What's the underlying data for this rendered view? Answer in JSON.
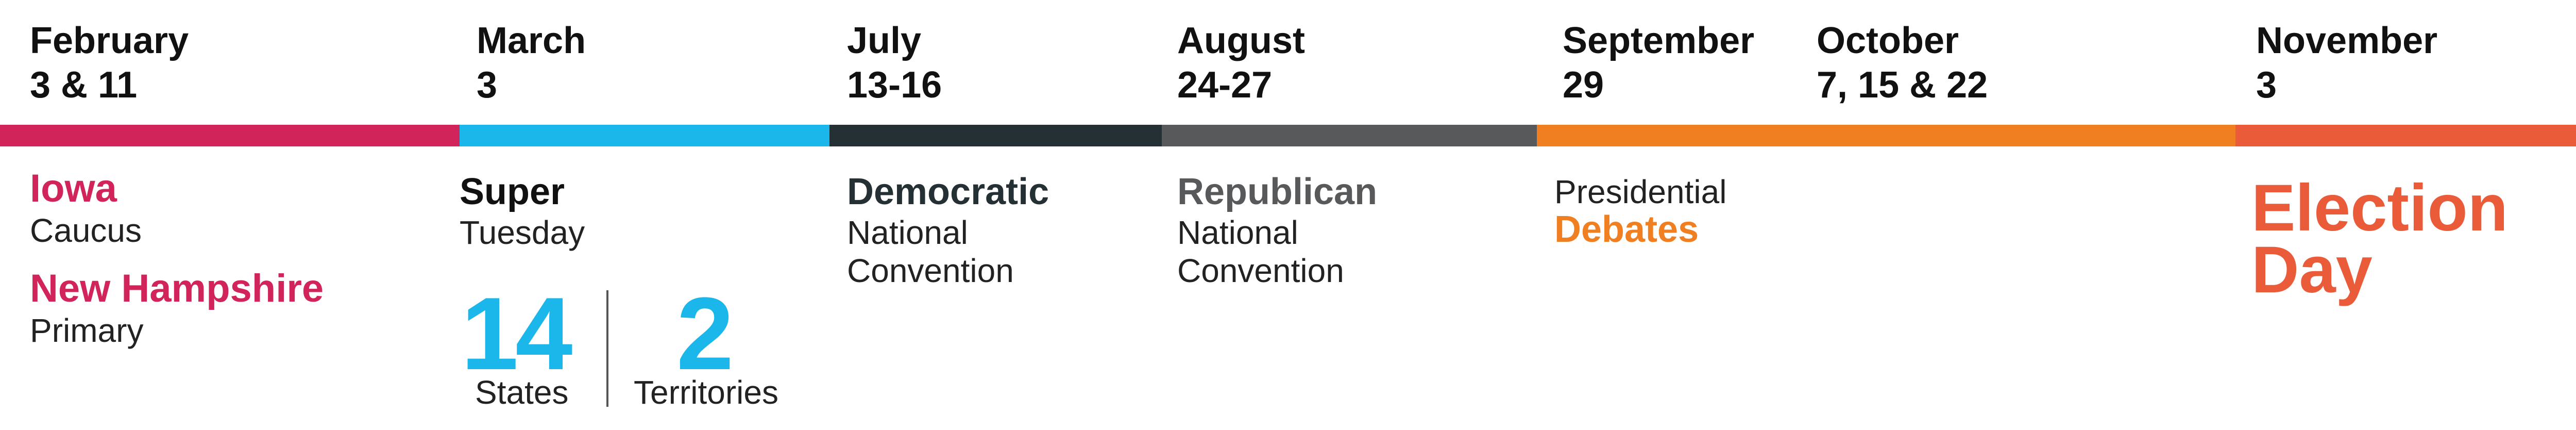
{
  "timeline": {
    "dates": [
      {
        "month": "February",
        "days": "3 & 11"
      },
      {
        "month": "March",
        "days": "3"
      },
      {
        "month": "July",
        "days": "13-16"
      },
      {
        "month": "August",
        "days": "24-27"
      },
      {
        "month": "September",
        "days": "29"
      },
      {
        "month": "October",
        "days": "7, 15 & 22"
      },
      {
        "month": "November",
        "days": "3"
      }
    ],
    "bar_colors": [
      "#d0245a",
      "#1bb7ea",
      "#243033",
      "#58595b",
      "#f07f22",
      "#f07f22",
      "#ea5b3a"
    ]
  },
  "events": {
    "iowa": {
      "title": "Iowa",
      "subtitle": "Caucus",
      "color": "#d0245a"
    },
    "new_hampshire": {
      "title": "New Hampshire",
      "subtitle": "Primary",
      "color": "#d0245a"
    },
    "super_tuesday": {
      "title": "Super",
      "subtitle": "Tuesday",
      "states_count": "14",
      "states_label": "States",
      "territories_count": "2",
      "territories_label": "Territories",
      "color": "#1bb7ea"
    },
    "dnc": {
      "title": "Democratic",
      "line2": "National",
      "line3": "Convention",
      "color": "#243033"
    },
    "rnc": {
      "title": "Republican",
      "line2": "National",
      "line3": "Convention",
      "color": "#58595b"
    },
    "debates": {
      "line1": "Presidential",
      "title": "Debates",
      "color": "#f07f22"
    },
    "election": {
      "line1": "Election",
      "line2": "Day",
      "color": "#ea5b3a"
    }
  }
}
